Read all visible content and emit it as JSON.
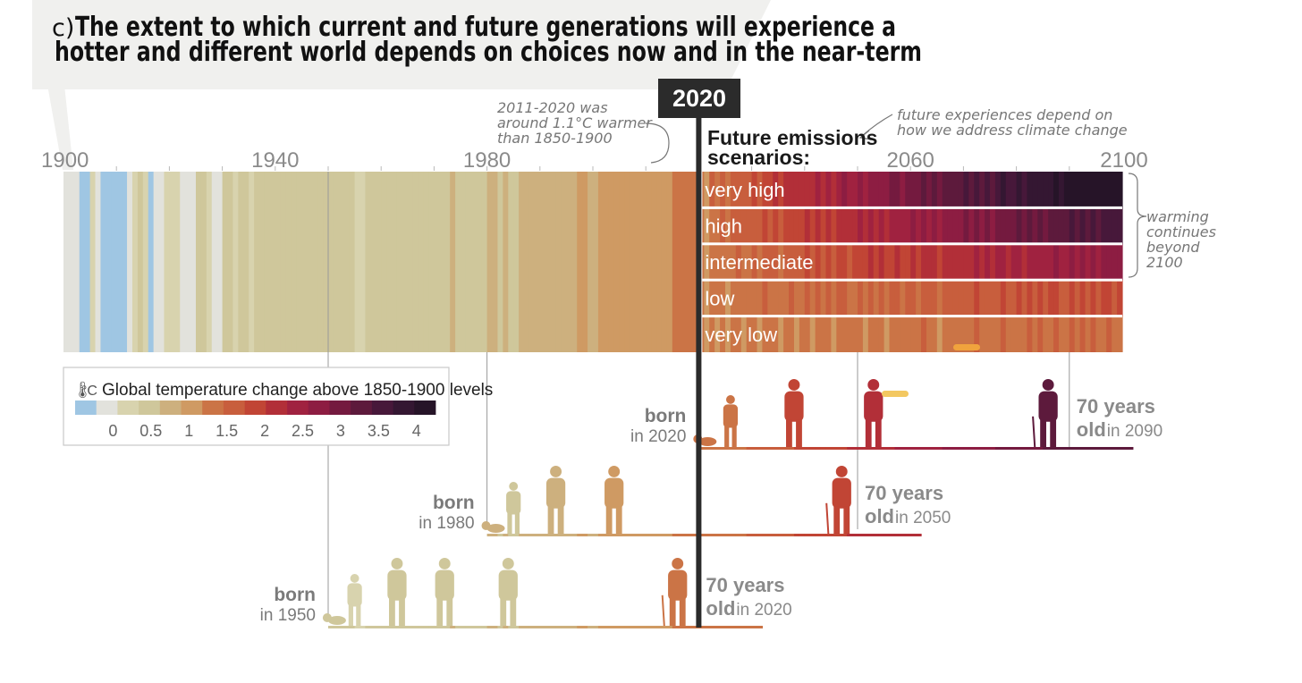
{
  "page": {
    "panel_label": "c)",
    "title_line1": "The extent to which current and future generations will experience a",
    "title_line2": "hotter and different world depends on choices now and in the near-term"
  },
  "chart_data": {
    "type": "heatmap",
    "title": "The extent to which current and future generations will experience a hotter and different world depends on choices now and in the near-term",
    "x_axis": {
      "range": [
        1900,
        2100
      ],
      "ticks": [
        1900,
        1940,
        1980,
        2020,
        2060,
        2100
      ],
      "minor_tick_step": 10
    },
    "current_year": 2020,
    "current_year_label": "2020",
    "annotations": {
      "past": [
        "2011-2020 was",
        "around 1.1°C warmer",
        "than 1850-1900"
      ],
      "future": [
        "future experiences depend on",
        "how we address climate change"
      ],
      "scenarios_title": [
        "Future emissions",
        "scenarios:"
      ],
      "beyond": [
        "warming",
        "continues",
        "beyond",
        "2100"
      ]
    },
    "historical_warming": [
      [
        1900,
        -0.1
      ],
      [
        1901,
        0.05
      ],
      [
        1902,
        0.05
      ],
      [
        1903,
        -0.3
      ],
      [
        1904,
        -0.3
      ],
      [
        1905,
        0.1
      ],
      [
        1906,
        0.05
      ],
      [
        1907,
        -0.3
      ],
      [
        1908,
        -0.3
      ],
      [
        1909,
        -0.3
      ],
      [
        1910,
        -0.3
      ],
      [
        1911,
        -0.3
      ],
      [
        1912,
        0.05
      ],
      [
        1913,
        0.1
      ],
      [
        1914,
        0.35
      ],
      [
        1915,
        0.3
      ],
      [
        1916,
        -0.3
      ],
      [
        1917,
        0.05
      ],
      [
        1918,
        0.05
      ],
      [
        1919,
        0.1
      ],
      [
        1920,
        0.1
      ],
      [
        1921,
        0.1
      ],
      [
        1922,
        0.05
      ],
      [
        1923,
        0.05
      ],
      [
        1924,
        0.05
      ],
      [
        1925,
        0.35
      ],
      [
        1926,
        0.45
      ],
      [
        1927,
        0.1
      ],
      [
        1928,
        0.05
      ],
      [
        1929,
        0.05
      ],
      [
        1930,
        0.4
      ],
      [
        1931,
        0.45
      ],
      [
        1932,
        0.3
      ],
      [
        1933,
        0.5
      ],
      [
        1934,
        0.35
      ],
      [
        1935,
        0.3
      ],
      [
        1936,
        0.4
      ],
      [
        1937,
        0.55
      ],
      [
        1938,
        0.6
      ],
      [
        1939,
        0.45
      ],
      [
        1940,
        0.4
      ],
      [
        1941,
        0.4
      ],
      [
        1942,
        0.4
      ],
      [
        1943,
        0.4
      ],
      [
        1944,
        0.6
      ],
      [
        1945,
        0.5
      ],
      [
        1946,
        0.4
      ],
      [
        1947,
        0.4
      ],
      [
        1948,
        0.4
      ],
      [
        1949,
        0.45
      ],
      [
        1950,
        0.35
      ],
      [
        1951,
        0.4
      ],
      [
        1952,
        0.4
      ],
      [
        1953,
        0.6
      ],
      [
        1954,
        0.35
      ],
      [
        1955,
        0.3
      ],
      [
        1956,
        0.3
      ],
      [
        1957,
        0.55
      ],
      [
        1958,
        0.5
      ],
      [
        1959,
        0.5
      ],
      [
        1960,
        0.5
      ],
      [
        1961,
        0.5
      ],
      [
        1962,
        0.5
      ],
      [
        1963,
        0.55
      ],
      [
        1964,
        0.35
      ],
      [
        1965,
        0.35
      ],
      [
        1966,
        0.45
      ],
      [
        1967,
        0.45
      ],
      [
        1968,
        0.4
      ],
      [
        1969,
        0.55
      ],
      [
        1970,
        0.5
      ],
      [
        1971,
        0.4
      ],
      [
        1972,
        0.45
      ],
      [
        1973,
        0.65
      ],
      [
        1974,
        0.4
      ],
      [
        1975,
        0.45
      ],
      [
        1976,
        0.35
      ],
      [
        1977,
        0.6
      ],
      [
        1978,
        0.5
      ],
      [
        1979,
        0.6
      ],
      [
        1980,
        0.7
      ],
      [
        1981,
        0.75
      ],
      [
        1982,
        0.6
      ],
      [
        1983,
        0.75
      ],
      [
        1984,
        0.6
      ],
      [
        1985,
        0.55
      ],
      [
        1986,
        0.65
      ],
      [
        1987,
        0.8
      ],
      [
        1988,
        0.85
      ],
      [
        1989,
        0.75
      ],
      [
        1990,
        0.85
      ],
      [
        1991,
        0.85
      ],
      [
        1992,
        0.65
      ],
      [
        1993,
        0.7
      ],
      [
        1994,
        0.75
      ],
      [
        1995,
        0.85
      ],
      [
        1996,
        0.75
      ],
      [
        1997,
        0.9
      ],
      [
        1998,
        1.05
      ],
      [
        1999,
        0.85
      ],
      [
        2000,
        0.85
      ],
      [
        2001,
        0.95
      ],
      [
        2002,
        1.0
      ],
      [
        2003,
        1.0
      ],
      [
        2004,
        0.95
      ],
      [
        2005,
        1.05
      ],
      [
        2006,
        1.0
      ],
      [
        2007,
        1.0
      ],
      [
        2008,
        0.9
      ],
      [
        2009,
        1.0
      ],
      [
        2010,
        1.1
      ],
      [
        2011,
        0.95
      ],
      [
        2012,
        1.0
      ],
      [
        2013,
        1.05
      ],
      [
        2014,
        1.1
      ],
      [
        2015,
        1.2
      ],
      [
        2016,
        1.3
      ],
      [
        2017,
        1.25
      ],
      [
        2018,
        1.2
      ],
      [
        2019,
        1.3
      ]
    ],
    "scenarios": [
      {
        "label": "very high",
        "warming_2020": 1.2,
        "warming_2100": 4.4,
        "warming_2060": 2.9
      },
      {
        "label": "high",
        "warming_2020": 1.2,
        "warming_2100": 3.6,
        "warming_2060": 2.6
      },
      {
        "label": "intermediate",
        "warming_2020": 1.2,
        "warming_2100": 2.7,
        "warming_2060": 2.1
      },
      {
        "label": "low",
        "warming_2020": 1.2,
        "warming_2100": 1.8,
        "warming_2060": 1.7
      },
      {
        "label": "very low",
        "warming_2020": 1.2,
        "warming_2100": 1.4,
        "warming_2060": 1.6
      }
    ],
    "legend": {
      "title": "Global temperature change above 1850-1900 levels",
      "unit": "°C",
      "range": [
        -0.5,
        4.25
      ],
      "tick_labels": [
        "0",
        "0.5",
        "1",
        "1.5",
        "2",
        "2.5",
        "3",
        "3.5",
        "4"
      ],
      "tick_values": [
        0,
        0.5,
        1,
        1.5,
        2,
        2.5,
        3,
        3.5,
        4
      ],
      "colors": [
        "#9fc6e3",
        "#e2e2dc",
        "#d8d3ae",
        "#cfc79b",
        "#cdb07e",
        "#cf9a63",
        "#cb7446",
        "#c85e3d",
        "#c14535",
        "#b22f38",
        "#a02240",
        "#8d1d42",
        "#741a3f",
        "#5d1a3c",
        "#47183a",
        "#341732",
        "#261428"
      ]
    },
    "generations": [
      {
        "born_label": "born",
        "born_year_label": "in 1950",
        "born_year": 1950,
        "age_label": "70 years",
        "old_label": "old",
        "old_year_label": "in 2020",
        "end_year": 2020,
        "figure_years": [
          1951,
          1955,
          1963,
          1972,
          1984,
          2016
        ]
      },
      {
        "born_label": "born",
        "born_year_label": "in 1980",
        "born_year": 1980,
        "age_label": "70 years",
        "old_label": "old",
        "old_year_label": "in 2050",
        "end_year": 2050,
        "figure_years": [
          1981,
          1985,
          1993,
          2004,
          2047
        ]
      },
      {
        "born_label": "born",
        "born_year_label": "in 2020",
        "born_year": 2020,
        "age_label": "70 years",
        "old_label": "old",
        "old_year_label": "in 2090",
        "end_year": 2090,
        "figure_years": [
          2021,
          2026,
          2038,
          2053,
          2086
        ]
      }
    ]
  }
}
